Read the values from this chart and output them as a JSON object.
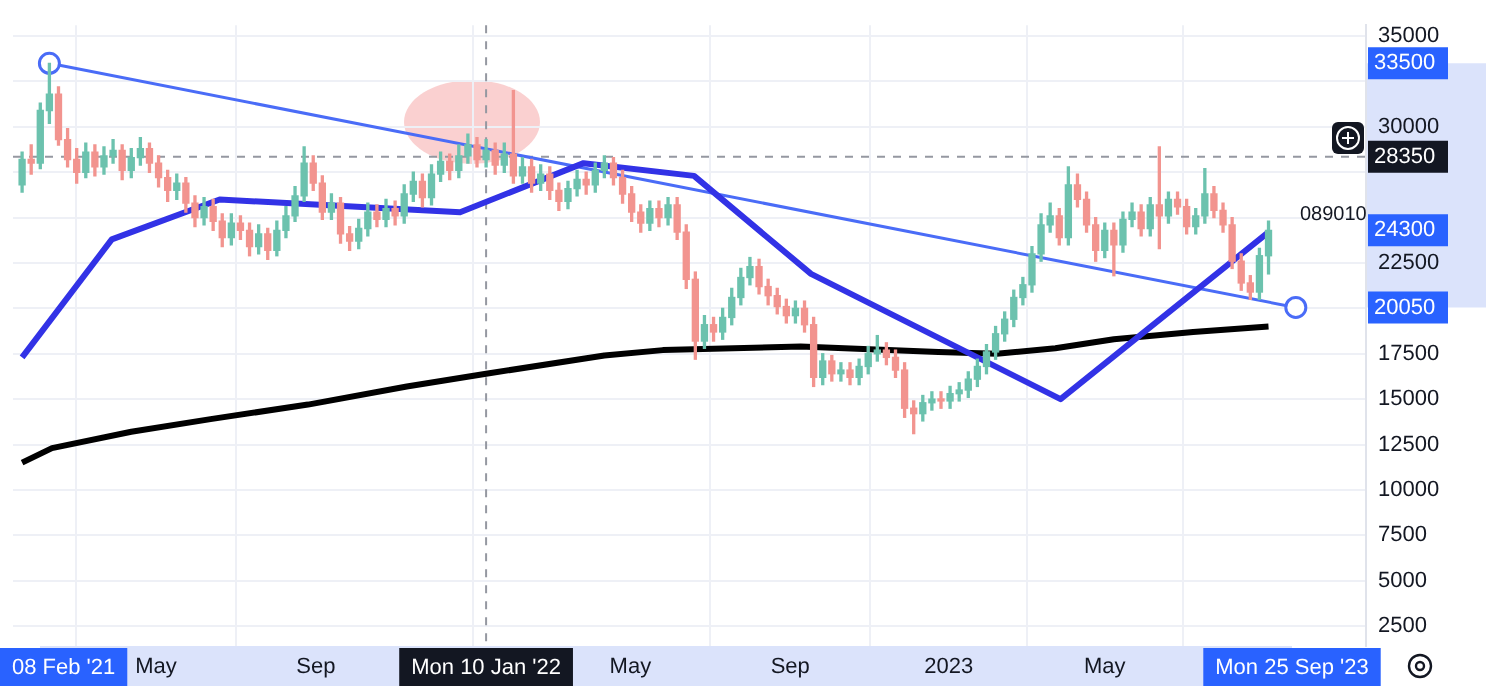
{
  "chart_data": {
    "type": "candlestick",
    "x": [
      "2021-01-18",
      "2021-01-25",
      "2021-02-01",
      "2021-02-08",
      "2021-02-15",
      "2021-02-22",
      "2021-03-01",
      "2021-03-08",
      "2021-03-15",
      "2021-03-22",
      "2021-03-29",
      "2021-04-05",
      "2021-04-12",
      "2021-04-19",
      "2021-04-26",
      "2021-05-03",
      "2021-05-10",
      "2021-05-17",
      "2021-05-24",
      "2021-05-31",
      "2021-06-07",
      "2021-06-14",
      "2021-06-21",
      "2021-06-28",
      "2021-07-05",
      "2021-07-12",
      "2021-07-19",
      "2021-07-26",
      "2021-08-02",
      "2021-08-09",
      "2021-08-16",
      "2021-08-23",
      "2021-08-30",
      "2021-09-06",
      "2021-09-13",
      "2021-09-20",
      "2021-09-27",
      "2021-10-04",
      "2021-10-11",
      "2021-10-18",
      "2021-10-25",
      "2021-11-01",
      "2021-11-08",
      "2021-11-15",
      "2021-11-22",
      "2021-11-29",
      "2021-12-06",
      "2021-12-13",
      "2021-12-20",
      "2021-12-27",
      "2022-01-03",
      "2022-01-10",
      "2022-01-17",
      "2022-01-24",
      "2022-01-31",
      "2022-02-07",
      "2022-02-14",
      "2022-02-21",
      "2022-02-28",
      "2022-03-07",
      "2022-03-14",
      "2022-03-21",
      "2022-03-28",
      "2022-04-04",
      "2022-04-11",
      "2022-04-18",
      "2022-04-25",
      "2022-05-02",
      "2022-05-09",
      "2022-05-16",
      "2022-05-23",
      "2022-05-30",
      "2022-06-06",
      "2022-06-13",
      "2022-06-20",
      "2022-06-27",
      "2022-07-04",
      "2022-07-11",
      "2022-07-18",
      "2022-07-25",
      "2022-08-01",
      "2022-08-08",
      "2022-08-15",
      "2022-08-22",
      "2022-08-29",
      "2022-09-05",
      "2022-09-12",
      "2022-09-19",
      "2022-09-26",
      "2022-10-03",
      "2022-10-10",
      "2022-10-17",
      "2022-10-24",
      "2022-10-31",
      "2022-11-07",
      "2022-11-14",
      "2022-11-21",
      "2022-11-28",
      "2022-12-05",
      "2022-12-12",
      "2022-12-19",
      "2022-12-26",
      "2023-01-02",
      "2023-01-09",
      "2023-01-16",
      "2023-01-23",
      "2023-01-30",
      "2023-02-06",
      "2023-02-13",
      "2023-02-20",
      "2023-02-27",
      "2023-03-06",
      "2023-03-13",
      "2023-03-20",
      "2023-03-27",
      "2023-04-03",
      "2023-04-10",
      "2023-04-17",
      "2023-04-24",
      "2023-05-01",
      "2023-05-08",
      "2023-05-15",
      "2023-05-22",
      "2023-05-29",
      "2023-06-05",
      "2023-06-12",
      "2023-06-19",
      "2023-06-26",
      "2023-07-03",
      "2023-07-10",
      "2023-07-17",
      "2023-07-24",
      "2023-07-31",
      "2023-08-07",
      "2023-08-14",
      "2023-08-21",
      "2023-08-28",
      "2023-09-04"
    ],
    "series": [
      {
        "ohlc": [
          [
            26800,
            28600,
            26400,
            28200
          ],
          [
            28200,
            29000,
            27400,
            28000
          ],
          [
            28000,
            31300,
            27700,
            30900
          ],
          [
            30900,
            33500,
            30200,
            31800
          ],
          [
            31800,
            32200,
            29000,
            29300
          ],
          [
            29300,
            29900,
            27800,
            28200
          ],
          [
            28200,
            28800,
            26900,
            27500
          ],
          [
            27500,
            29100,
            27200,
            28600
          ],
          [
            28600,
            29000,
            27300,
            27800
          ],
          [
            27800,
            28900,
            27400,
            28400
          ],
          [
            28400,
            29300,
            28000,
            28700
          ],
          [
            28700,
            29000,
            27100,
            27600
          ],
          [
            27600,
            28800,
            27200,
            28300
          ],
          [
            28300,
            29400,
            27900,
            28800
          ],
          [
            28800,
            29100,
            27500,
            28000
          ],
          [
            28000,
            28400,
            26700,
            27200
          ],
          [
            27200,
            27600,
            25900,
            26500
          ],
          [
            26500,
            27400,
            26000,
            26900
          ],
          [
            26900,
            27200,
            25300,
            25800
          ],
          [
            25800,
            26200,
            24500,
            25000
          ],
          [
            25000,
            26100,
            24600,
            25600
          ],
          [
            25600,
            26000,
            24300,
            24800
          ],
          [
            24800,
            25200,
            23400,
            23900
          ],
          [
            23900,
            25200,
            23500,
            24700
          ],
          [
            24700,
            25100,
            23800,
            24300
          ],
          [
            24300,
            24700,
            22900,
            23400
          ],
          [
            23400,
            24600,
            23000,
            24100
          ],
          [
            24100,
            24400,
            22700,
            23200
          ],
          [
            23200,
            24800,
            22900,
            24300
          ],
          [
            24300,
            25600,
            23900,
            25100
          ],
          [
            25100,
            26700,
            24800,
            26200
          ],
          [
            26200,
            28900,
            25900,
            28000
          ],
          [
            28000,
            28400,
            26500,
            26900
          ],
          [
            26900,
            27300,
            24900,
            25300
          ],
          [
            25300,
            26300,
            24900,
            25800
          ],
          [
            25800,
            26100,
            23600,
            24100
          ],
          [
            24100,
            24500,
            23200,
            23700
          ],
          [
            23700,
            24900,
            23300,
            24400
          ],
          [
            24400,
            25800,
            24000,
            25300
          ],
          [
            25300,
            25700,
            24500,
            24900
          ],
          [
            24900,
            26000,
            24500,
            25500
          ],
          [
            25500,
            25900,
            24600,
            25100
          ],
          [
            25100,
            26800,
            24700,
            26300
          ],
          [
            26300,
            27500,
            25900,
            27000
          ],
          [
            27000,
            27400,
            25600,
            26100
          ],
          [
            26100,
            27900,
            25700,
            27400
          ],
          [
            27400,
            28600,
            27000,
            28100
          ],
          [
            28100,
            28500,
            27100,
            27600
          ],
          [
            27600,
            29000,
            27200,
            28400
          ],
          [
            28400,
            29600,
            28000,
            29000
          ],
          [
            29000,
            29400,
            27800,
            28200
          ],
          [
            28200,
            29300,
            27800,
            28700
          ],
          [
            28700,
            29100,
            27400,
            27900
          ],
          [
            27900,
            29100,
            27500,
            28500
          ],
          [
            28500,
            32000,
            26900,
            27300
          ],
          [
            27300,
            28300,
            26900,
            27800
          ],
          [
            27800,
            28200,
            26400,
            26900
          ],
          [
            26900,
            27900,
            26500,
            27400
          ],
          [
            27400,
            27800,
            26000,
            26500
          ],
          [
            26500,
            26900,
            25400,
            25900
          ],
          [
            25900,
            27000,
            25500,
            26600
          ],
          [
            26600,
            27600,
            26200,
            27100
          ],
          [
            27100,
            27500,
            26300,
            26800
          ],
          [
            26800,
            28000,
            26400,
            27600
          ],
          [
            27600,
            28400,
            27200,
            28000
          ],
          [
            28000,
            28300,
            26800,
            27200
          ],
          [
            27200,
            27600,
            25800,
            26300
          ],
          [
            26300,
            26700,
            24800,
            25300
          ],
          [
            25300,
            25700,
            24200,
            24700
          ],
          [
            24700,
            25900,
            24300,
            25500
          ],
          [
            25500,
            25900,
            24500,
            25000
          ],
          [
            25000,
            26100,
            24600,
            25700
          ],
          [
            25700,
            26100,
            23800,
            24200
          ],
          [
            24200,
            24600,
            21100,
            21600
          ],
          [
            21600,
            22000,
            17200,
            18200
          ],
          [
            18200,
            19600,
            17800,
            19100
          ],
          [
            19100,
            19500,
            18200,
            18700
          ],
          [
            18700,
            20000,
            18300,
            19500
          ],
          [
            19500,
            21100,
            19100,
            20600
          ],
          [
            20600,
            22200,
            20200,
            21700
          ],
          [
            21700,
            22800,
            21300,
            22300
          ],
          [
            22300,
            22700,
            20800,
            21200
          ],
          [
            21200,
            21600,
            20200,
            20700
          ],
          [
            20700,
            21100,
            19700,
            20100
          ],
          [
            20100,
            20500,
            19200,
            19600
          ],
          [
            19600,
            20400,
            19200,
            20000
          ],
          [
            20000,
            20400,
            18700,
            19100
          ],
          [
            19100,
            19500,
            15700,
            16200
          ],
          [
            16200,
            17500,
            15800,
            17100
          ],
          [
            17100,
            17400,
            16000,
            16400
          ],
          [
            16400,
            17000,
            16000,
            16600
          ],
          [
            16600,
            17000,
            15800,
            16200
          ],
          [
            16200,
            17200,
            15800,
            16800
          ],
          [
            16800,
            17900,
            16400,
            17500
          ],
          [
            17500,
            18500,
            17100,
            17700
          ],
          [
            17700,
            18100,
            16900,
            17300
          ],
          [
            17300,
            17700,
            16200,
            16600
          ],
          [
            16600,
            17000,
            14000,
            14500
          ],
          [
            14500,
            14900,
            13100,
            14200
          ],
          [
            14200,
            15200,
            13800,
            14800
          ],
          [
            14800,
            15400,
            14400,
            15000
          ],
          [
            15000,
            15400,
            14500,
            14900
          ],
          [
            14900,
            15700,
            14500,
            15300
          ],
          [
            15300,
            15900,
            14900,
            15500
          ],
          [
            15500,
            16500,
            15100,
            16100
          ],
          [
            16100,
            17200,
            15700,
            16800
          ],
          [
            16800,
            18000,
            16400,
            17600
          ],
          [
            17600,
            19000,
            17200,
            18600
          ],
          [
            18600,
            19800,
            18200,
            19400
          ],
          [
            19400,
            21000,
            19000,
            20600
          ],
          [
            20600,
            21700,
            20200,
            21300
          ],
          [
            21300,
            23400,
            20900,
            23000
          ],
          [
            23000,
            25200,
            22600,
            24600
          ],
          [
            24600,
            25800,
            24200,
            25100
          ],
          [
            25100,
            25500,
            23500,
            23900
          ],
          [
            23900,
            27800,
            23500,
            26800
          ],
          [
            26800,
            27400,
            25600,
            26000
          ],
          [
            26000,
            26400,
            24200,
            24600
          ],
          [
            24600,
            25000,
            22600,
            23200
          ],
          [
            23200,
            24700,
            22800,
            24300
          ],
          [
            24300,
            24700,
            21800,
            23500
          ],
          [
            23500,
            25300,
            23100,
            24900
          ],
          [
            24900,
            25800,
            24500,
            25300
          ],
          [
            25300,
            25700,
            24000,
            24400
          ],
          [
            24400,
            26100,
            24000,
            25700
          ],
          [
            25700,
            28900,
            23300,
            25100
          ],
          [
            25100,
            26400,
            24700,
            26000
          ],
          [
            26000,
            26400,
            25200,
            25600
          ],
          [
            25600,
            26000,
            24100,
            24500
          ],
          [
            24500,
            25500,
            24100,
            25100
          ],
          [
            25100,
            27700,
            24700,
            26300
          ],
          [
            26300,
            26700,
            25000,
            25400
          ],
          [
            25400,
            25800,
            24200,
            24600
          ],
          [
            24600,
            25000,
            22200,
            22600
          ],
          [
            22600,
            23000,
            21000,
            21400
          ],
          [
            21400,
            21800,
            20500,
            20900
          ],
          [
            20900,
            23300,
            20500,
            22900
          ],
          [
            22900,
            24800,
            21900,
            24300
          ]
        ]
      },
      {
        "type": "line",
        "color": "#3232e6",
        "x": [
          "2021-01-18",
          "2021-03-28",
          "2021-06-19",
          "2021-12-21",
          "2022-03-26",
          "2022-06-19",
          "2022-09-17",
          "2023-03-28",
          "2023-09-04"
        ],
        "values": [
          17300,
          23800,
          26000,
          25300,
          28000,
          27300,
          21900,
          15000,
          24200
        ]
      },
      {
        "type": "line",
        "color": "#000000",
        "x": [
          "2021-01-18",
          "2021-02-10",
          "2021-04-12",
          "2021-06-12",
          "2021-08-26",
          "2021-11-10",
          "2022-01-10",
          "2022-04-11",
          "2022-05-26",
          "2022-09-09",
          "2022-12-24",
          "2023-02-07",
          "2023-03-24",
          "2023-05-08",
          "2023-07-08",
          "2023-09-04"
        ],
        "values": [
          11500,
          12300,
          13200,
          13900,
          14700,
          15700,
          16400,
          17400,
          17700,
          17900,
          17600,
          17500,
          17800,
          18300,
          18700,
          19000
        ]
      },
      {
        "type": "line",
        "color": "#4a6cf7",
        "marker": "circle",
        "x": [
          "2021-02-08",
          "2023-09-25"
        ],
        "values": [
          33500,
          20050
        ]
      }
    ],
    "xlim": [
      "2021-01-11",
      "2023-11-18"
    ],
    "xticks": [
      {
        "value": "2021-05-01",
        "label": "May"
      },
      {
        "value": "2021-09-01",
        "label": "Sep"
      },
      {
        "value": "2022-05-01",
        "label": "May"
      },
      {
        "value": "2022-09-01",
        "label": "Sep"
      },
      {
        "value": "2023-01-01",
        "label": "2023"
      },
      {
        "value": "2023-05-01",
        "label": "May"
      }
    ],
    "ylim": [
      1400,
      35600
    ],
    "yticks": [
      2500,
      5000,
      7500,
      10000,
      12500,
      15000,
      17500,
      {
        "value": 20000,
        "label": null
      },
      22500,
      {
        "value": 25000,
        "label": null
      },
      {
        "value": 27500,
        "label": null
      },
      30000,
      {
        "value": 32500,
        "label": null
      },
      35000
    ],
    "grid": true,
    "ref_lines": [
      {
        "axis": "y",
        "value": 28350,
        "label": "28350",
        "color": "#9598a1",
        "line_style": "dashed"
      },
      {
        "axis": "x",
        "value": "2022-01-10",
        "label": "Mon 10 Jan '22",
        "color": "#9598a1",
        "line_style": "dashed"
      }
    ],
    "annotations": [
      {
        "text": "33500",
        "y": 33500
      },
      {
        "text": "20050",
        "y": 20050
      },
      {
        "text": "24300",
        "y": 24300
      },
      "08 Feb '21",
      "Mon 25 Sep '23",
      "089010"
    ]
  }
}
